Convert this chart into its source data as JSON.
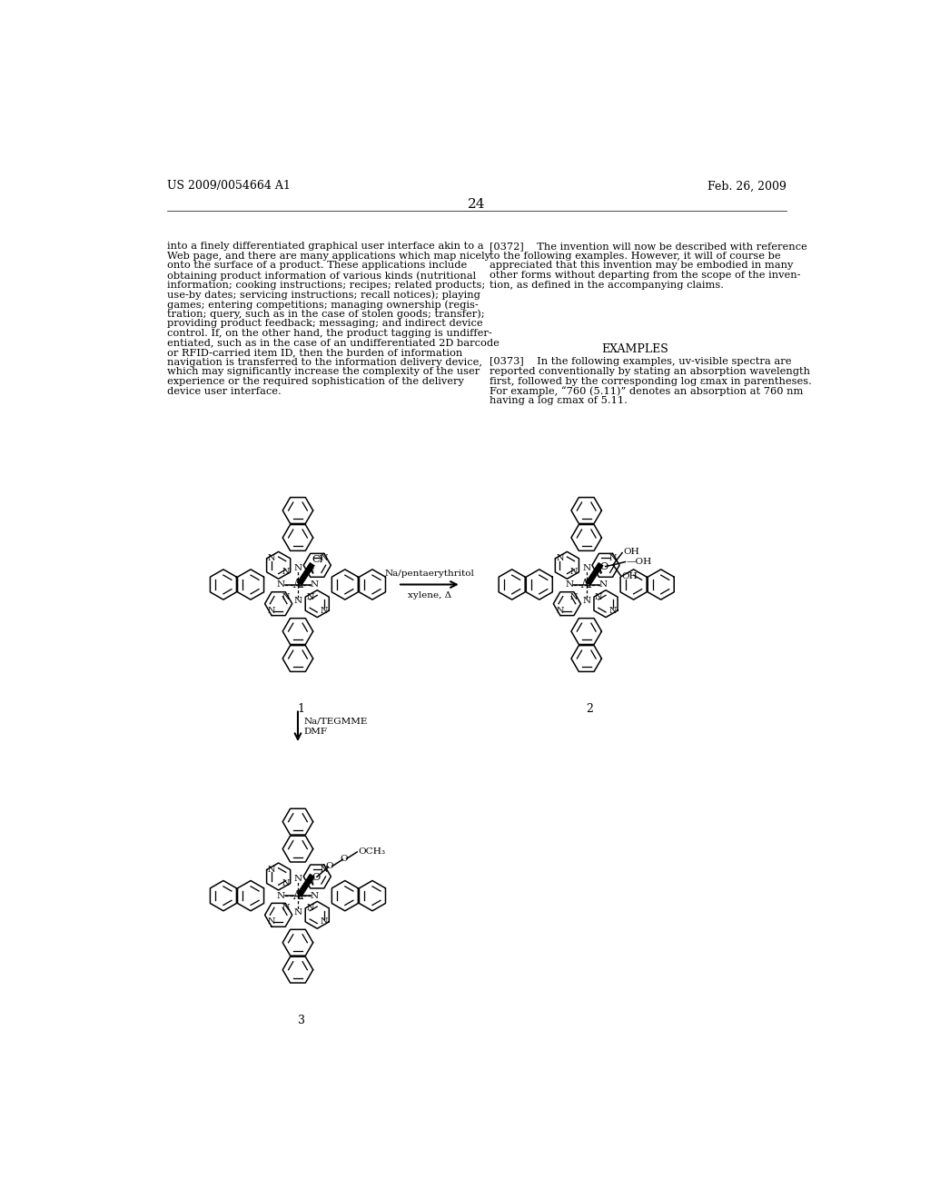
{
  "background_color": "#ffffff",
  "header_left": "US 2009/0054664 A1",
  "header_right": "Feb. 26, 2009",
  "page_number": "24",
  "left_col_text": [
    "into a finely differentiated graphical user interface akin to a",
    "Web page, and there are many applications which map nicely",
    "onto the surface of a product. These applications include",
    "obtaining product information of various kinds (nutritional",
    "information; cooking instructions; recipes; related products;",
    "use-by dates; servicing instructions; recall notices); playing",
    "games; entering competitions; managing ownership (regis-",
    "tration; query, such as in the case of stolen goods; transfer);",
    "providing product feedback; messaging; and indirect device",
    "control. If, on the other hand, the product tagging is undiffer-",
    "entiated, such as in the case of an undifferentiated 2D barcode",
    "or RFID-carried item ID, then the burden of information",
    "navigation is transferred to the information delivery device,",
    "which may significantly increase the complexity of the user",
    "experience or the required sophistication of the delivery",
    "device user interface."
  ],
  "para0372_lines": [
    "[0372]    The invention will now be described with reference",
    "to the following examples. However, it will of course be",
    "appreciated that this invention may be embodied in many",
    "other forms without departing from the scope of the inven-",
    "tion, as defined in the accompanying claims."
  ],
  "examples_heading": "EXAMPLES",
  "para0373_lines": [
    "[0373]    In the following examples, uv-visible spectra are",
    "reported conventionally by stating an absorption wavelength",
    "first, followed by the corresponding log εmax in parentheses.",
    "For example, “760 (5.11)” denotes an absorption at 760 nm",
    "having a log εmax of 5.11."
  ],
  "compound1_label": "1",
  "compound2_label": "2",
  "compound3_label": "3",
  "reaction1_top": "Na/pentaerythritol",
  "reaction1_bot": "xylene, Δ",
  "reaction2_top": "Na/TEGMME",
  "reaction2_bot": "DMF",
  "font_size_header": 9,
  "font_size_body": 8.2,
  "font_size_page_num": 11,
  "font_size_label": 9,
  "font_size_heading": 9
}
